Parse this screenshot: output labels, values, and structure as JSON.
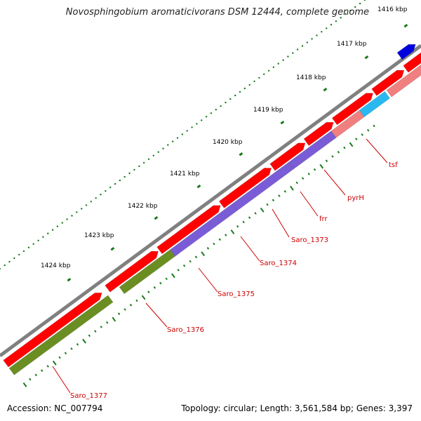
{
  "title": "Novosphingobium aromaticivorans DSM 12444, complete genome",
  "footer": {
    "accession": "Accession: NC_007794",
    "summary": "Topology: circular; Length: 3,561,584 bp; Genes: 3,397"
  },
  "colors": {
    "backbone": "#808080",
    "forward_gene": "#ff0000",
    "reverse_gene": "#f08080",
    "tick": "#1a7a1a",
    "label": "#cc0000"
  },
  "kbp_labels": [
    "1416 kbp",
    "1417 kbp",
    "1418 kbp",
    "1419 kbp",
    "1420 kbp",
    "1421 kbp",
    "1422 kbp",
    "1423 kbp",
    "1424 kbp"
  ],
  "genes": [
    {
      "name": "tsf",
      "color": "#f08080"
    },
    {
      "name": "pyrH",
      "color": "#2ab8f0"
    },
    {
      "name": "frr",
      "color": "#f08080"
    },
    {
      "name": "Saro_1373",
      "color": "#7a5cd6"
    },
    {
      "name": "Saro_1374",
      "color": "#7a5cd6"
    },
    {
      "name": "Saro_1375",
      "color": "#7a5cd6"
    },
    {
      "name": "Saro_1376",
      "color": "#6b8e23"
    },
    {
      "name": "Saro_1377",
      "color": "#6b8e23"
    }
  ]
}
